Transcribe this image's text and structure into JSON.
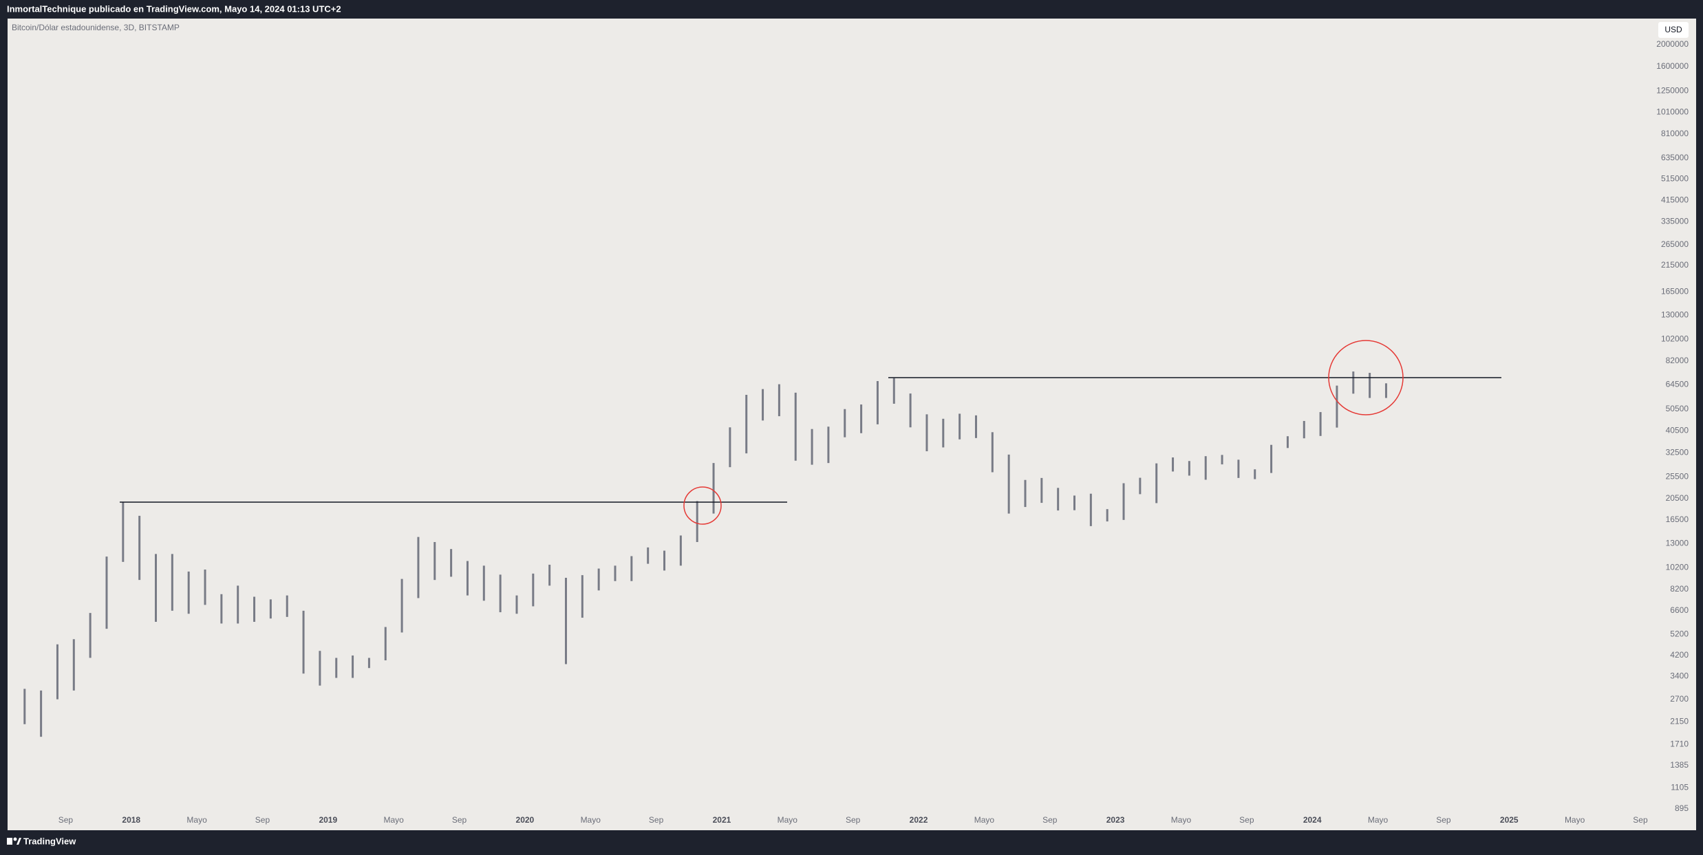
{
  "header": {
    "publisher": "InmortalTechnique publicado en TradingView.com, Mayo 14, 2024 01:13 UTC+2",
    "brand": "TradingView"
  },
  "chart_data": {
    "type": "hl_bar",
    "title": "Bitcoin/Dólar estadounidense, 3D, BITSTAMP",
    "currency": "USD",
    "color": "#787b86",
    "log_scale": true,
    "grid": false,
    "x": [
      "2017-06",
      "2017-07",
      "2017-08",
      "2017-09",
      "2017-10",
      "2017-11",
      "2017-12",
      "2018-01",
      "2018-02",
      "2018-03",
      "2018-04",
      "2018-05",
      "2018-06",
      "2018-07",
      "2018-08",
      "2018-09",
      "2018-10",
      "2018-11",
      "2018-12",
      "2019-01",
      "2019-02",
      "2019-03",
      "2019-04",
      "2019-05",
      "2019-06",
      "2019-07",
      "2019-08",
      "2019-09",
      "2019-10",
      "2019-11",
      "2019-12",
      "2020-01",
      "2020-02",
      "2020-03",
      "2020-04",
      "2020-05",
      "2020-06",
      "2020-07",
      "2020-08",
      "2020-09",
      "2020-10",
      "2020-11",
      "2020-12",
      "2021-01",
      "2021-02",
      "2021-03",
      "2021-04",
      "2021-05",
      "2021-06",
      "2021-07",
      "2021-08",
      "2021-09",
      "2021-10",
      "2021-11",
      "2021-12",
      "2022-01",
      "2022-02",
      "2022-03",
      "2022-04",
      "2022-05",
      "2022-06",
      "2022-07",
      "2022-08",
      "2022-09",
      "2022-10",
      "2022-11",
      "2022-12",
      "2023-01",
      "2023-02",
      "2023-03",
      "2023-04",
      "2023-05",
      "2023-06",
      "2023-07",
      "2023-08",
      "2023-09",
      "2023-10",
      "2023-11",
      "2023-12",
      "2024-01",
      "2024-02",
      "2024-03",
      "2024-04",
      "2024-05"
    ],
    "low": [
      2100,
      1850,
      2700,
      2950,
      4100,
      5500,
      10800,
      9000,
      5900,
      6600,
      6400,
      7000,
      5800,
      5800,
      5900,
      6100,
      6200,
      3500,
      3100,
      3350,
      3350,
      3700,
      4000,
      5300,
      7500,
      9000,
      9300,
      7700,
      7300,
      6500,
      6400,
      6900,
      8500,
      3850,
      6150,
      8100,
      8900,
      8900,
      10600,
      9900,
      10400,
      13200,
      17600,
      28100,
      32300,
      45000,
      47000,
      30000,
      28800,
      29300,
      38000,
      39600,
      43300,
      53300,
      42000,
      33000,
      34300,
      37200,
      37700,
      26700,
      17600,
      18800,
      19600,
      18150,
      18200,
      15500,
      16250,
      16500,
      21400,
      19550,
      26900,
      25800,
      24750,
      28900,
      25200,
      24900,
      26500,
      34100,
      37600,
      38500,
      41900,
      59000,
      56500,
      56500
    ],
    "high": [
      3000,
      2950,
      4700,
      4950,
      6450,
      11400,
      19700,
      17200,
      11700,
      11700,
      9800,
      10000,
      7800,
      8500,
      7600,
      7400,
      7700,
      6600,
      4400,
      4100,
      4200,
      4100,
      5600,
      9100,
      13900,
      13200,
      12300,
      10900,
      10400,
      9500,
      7700,
      9600,
      10500,
      9200,
      9450,
      10100,
      10400,
      11450,
      12500,
      12100,
      14100,
      19950,
      29300,
      42000,
      58300,
      61800,
      64900,
      59600,
      41300,
      42300,
      50500,
      52900,
      67000,
      69000,
      59100,
      47900,
      45800,
      48200,
      47400,
      40000,
      31900,
      24700,
      25200,
      22800,
      21100,
      21500,
      18400,
      23900,
      25250,
      29200,
      31000,
      29900,
      31400,
      31800,
      30300,
      27500,
      35200,
      38400,
      44800,
      49000,
      64000,
      73800,
      72800,
      65500
    ],
    "xlim": [
      "2017-05-15",
      "2025-09-24"
    ],
    "xticks": [
      {
        "value": "2017-09",
        "label": "Sep"
      },
      {
        "value": "2018-01",
        "label": "2018"
      },
      {
        "value": "2018-05",
        "label": "Mayo"
      },
      {
        "value": "2018-09",
        "label": "Sep"
      },
      {
        "value": "2019-01",
        "label": "2019"
      },
      {
        "value": "2019-05",
        "label": "Mayo"
      },
      {
        "value": "2019-09",
        "label": "Sep"
      },
      {
        "value": "2020-01",
        "label": "2020"
      },
      {
        "value": "2020-05",
        "label": "Mayo"
      },
      {
        "value": "2020-09",
        "label": "Sep"
      },
      {
        "value": "2021-01",
        "label": "2021"
      },
      {
        "value": "2021-05",
        "label": "Mayo"
      },
      {
        "value": "2021-09",
        "label": "Sep"
      },
      {
        "value": "2022-01",
        "label": "2022"
      },
      {
        "value": "2022-05",
        "label": "Mayo"
      },
      {
        "value": "2022-09",
        "label": "Sep"
      },
      {
        "value": "2023-01",
        "label": "2023"
      },
      {
        "value": "2023-05",
        "label": "Mayo"
      },
      {
        "value": "2023-09",
        "label": "Sep"
      },
      {
        "value": "2024-01",
        "label": "2024"
      },
      {
        "value": "2024-05",
        "label": "Mayo"
      },
      {
        "value": "2024-09",
        "label": "Sep"
      },
      {
        "value": "2025-01",
        "label": "2025"
      },
      {
        "value": "2025-05",
        "label": "Mayo"
      },
      {
        "value": "2025-09",
        "label": "Sep"
      }
    ],
    "ylim": [
      720,
      2600000
    ],
    "yticks": [
      2000000,
      1600000,
      1250000,
      1010000,
      810000,
      635000,
      515000,
      415000,
      335000,
      265000,
      215000,
      165000,
      130000,
      102000,
      82000,
      64500,
      50500,
      40500,
      32500,
      25500,
      20500,
      16500,
      13000,
      10200,
      8200,
      6600,
      5200,
      4200,
      3400,
      2700,
      2150,
      1710,
      1385,
      1105,
      895
    ]
  }
}
